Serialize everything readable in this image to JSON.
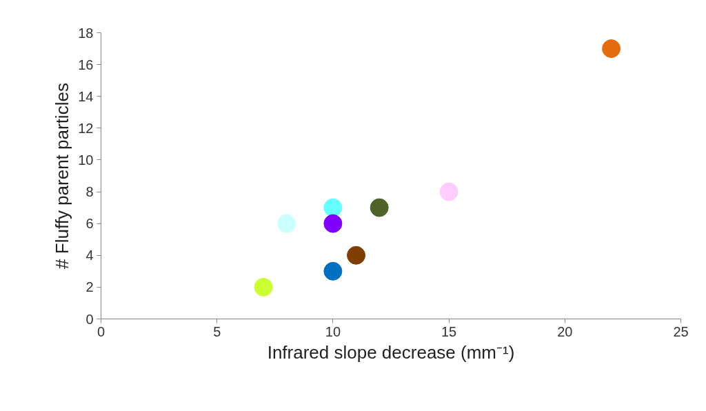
{
  "chart_data": {
    "type": "scatter",
    "xlabel": "Infrared slope decrease (mm⁻¹)",
    "ylabel": "# Fluffy parent particles",
    "x": [
      7,
      8,
      10,
      10,
      10,
      11,
      12,
      15,
      22
    ],
    "values": [
      2,
      6,
      7,
      6,
      3,
      4,
      7,
      8,
      17
    ],
    "colors": [
      "#ccff33",
      "#ccffff",
      "#66ffff",
      "#7f00ff",
      "#0070c0",
      "#7f3f00",
      "#4f6228",
      "#ffccff",
      "#e46c0a"
    ],
    "marker": "circle",
    "xlim": [
      0,
      25
    ],
    "xticks": [
      0,
      5,
      10,
      15,
      20,
      25
    ],
    "ylim": [
      0,
      18
    ],
    "yticks": [
      0,
      2,
      4,
      6,
      8,
      10,
      12,
      14,
      16,
      18
    ],
    "grid": false
  }
}
